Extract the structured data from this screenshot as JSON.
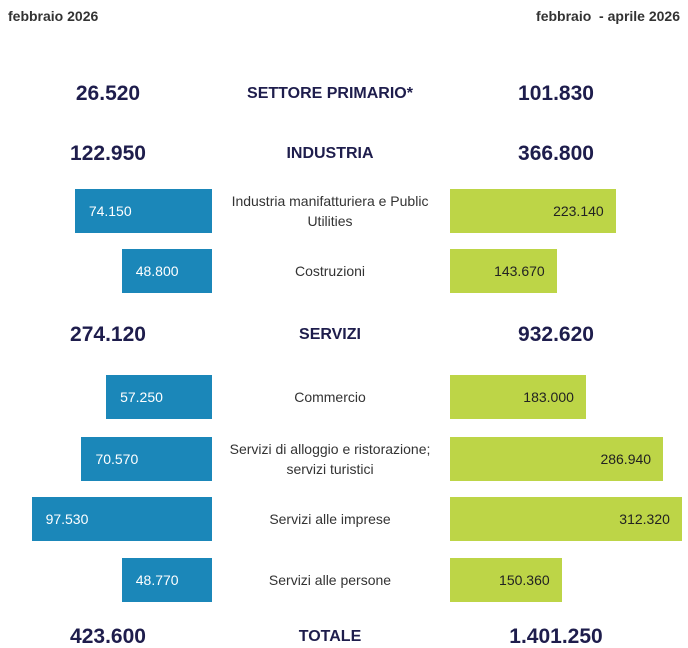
{
  "chart_data": {
    "type": "butterfly",
    "categories": [
      "SETTORE PRIMARIO*",
      "INDUSTRIA",
      "Industria manifatturiera e Public Utilities",
      "Costruzioni",
      "SERVIZI",
      "Commercio",
      "Servizi di alloggio e ristorazione; servizi turistici",
      "Servizi alle imprese",
      "Servizi alle persone",
      "TOTALE"
    ],
    "bar_rows": [
      false,
      false,
      true,
      true,
      false,
      true,
      true,
      true,
      true,
      false
    ],
    "series": [
      {
        "name": "febbraio 2026",
        "color": "#1b87b9",
        "values": [
          26520,
          122950,
          74150,
          48800,
          274120,
          57250,
          70570,
          97530,
          48770,
          423600
        ],
        "value_labels": [
          "26.520",
          "122.950",
          "74.150",
          "48.800",
          "274.120",
          "57.250",
          "70.570",
          "97.530",
          "48.770",
          "423.600"
        ]
      },
      {
        "name": "febbraio  - aprile 2026",
        "color": "#bdd547",
        "values": [
          101830,
          366800,
          223140,
          143670,
          932620,
          183000,
          286940,
          312320,
          150360,
          1401250
        ],
        "value_labels": [
          "101.830",
          "366.800",
          "223.140",
          "143.670",
          "932.620",
          "183.000",
          "286.940",
          "312.320",
          "150.360",
          "1.401.250"
        ]
      }
    ],
    "xlim": [
      0,
      100000
    ],
    "x2lim": [
      0,
      400000
    ]
  }
}
